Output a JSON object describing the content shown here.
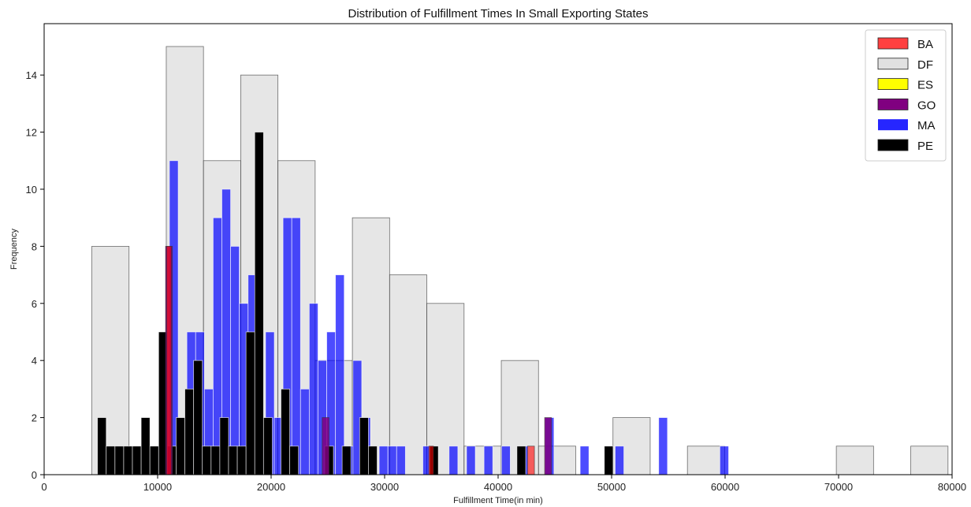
{
  "chart_data": {
    "type": "histogram",
    "title": "Distribution of Fulfillment Times In Small Exporting States",
    "xlabel": "Fulfillment Time(in min)",
    "ylabel": "Frequency",
    "xlim": [
      0,
      80000
    ],
    "ylim": [
      0,
      15.8
    ],
    "xticks": [
      0,
      10000,
      20000,
      30000,
      40000,
      50000,
      60000,
      70000,
      80000
    ],
    "yticks": [
      0,
      2,
      4,
      6,
      8,
      10,
      12,
      14
    ],
    "legend_position": "top-right",
    "grid": false,
    "series": [
      {
        "name": "DF",
        "color": "#d9d9d9",
        "alpha": 0.65,
        "edge": "#333333",
        "bins": [
          {
            "x0": 4200,
            "x1": 7480,
            "y": 8
          },
          {
            "x0": 10760,
            "x1": 14040,
            "y": 15
          },
          {
            "x0": 14040,
            "x1": 17320,
            "y": 11
          },
          {
            "x0": 17320,
            "x1": 20600,
            "y": 14
          },
          {
            "x0": 20600,
            "x1": 23880,
            "y": 11
          },
          {
            "x0": 23880,
            "x1": 27160,
            "y": 4
          },
          {
            "x0": 27160,
            "x1": 30440,
            "y": 9
          },
          {
            "x0": 30440,
            "x1": 33720,
            "y": 7
          },
          {
            "x0": 33720,
            "x1": 37000,
            "y": 6
          },
          {
            "x0": 37000,
            "x1": 40280,
            "y": 1
          },
          {
            "x0": 40280,
            "x1": 43560,
            "y": 4
          },
          {
            "x0": 43560,
            "x1": 46840,
            "y": 1
          },
          {
            "x0": 50120,
            "x1": 53400,
            "y": 2
          },
          {
            "x0": 56680,
            "x1": 59960,
            "y": 1
          },
          {
            "x0": 69800,
            "x1": 73080,
            "y": 1
          },
          {
            "x0": 76360,
            "x1": 79640,
            "y": 1
          }
        ]
      },
      {
        "name": "MA",
        "color": "#0000ff",
        "alpha": 0.7,
        "edge": "#ffffff",
        "bins": [
          {
            "x0": 9500,
            "x1": 10270,
            "y": 1
          },
          {
            "x0": 11040,
            "x1": 11810,
            "y": 11
          },
          {
            "x0": 11810,
            "x1": 12580,
            "y": 2
          },
          {
            "x0": 12580,
            "x1": 13350,
            "y": 5
          },
          {
            "x0": 13350,
            "x1": 14120,
            "y": 5
          },
          {
            "x0": 14120,
            "x1": 14890,
            "y": 3
          },
          {
            "x0": 14890,
            "x1": 15660,
            "y": 9
          },
          {
            "x0": 15660,
            "x1": 16430,
            "y": 10
          },
          {
            "x0": 16430,
            "x1": 17200,
            "y": 8
          },
          {
            "x0": 17200,
            "x1": 17970,
            "y": 6
          },
          {
            "x0": 17970,
            "x1": 18740,
            "y": 7
          },
          {
            "x0": 18740,
            "x1": 19510,
            "y": 1
          },
          {
            "x0": 19510,
            "x1": 20280,
            "y": 5
          },
          {
            "x0": 20280,
            "x1": 21050,
            "y": 2
          },
          {
            "x0": 21050,
            "x1": 21820,
            "y": 9
          },
          {
            "x0": 21820,
            "x1": 22590,
            "y": 9
          },
          {
            "x0": 22590,
            "x1": 23360,
            "y": 3
          },
          {
            "x0": 23360,
            "x1": 24130,
            "y": 6
          },
          {
            "x0": 24130,
            "x1": 24900,
            "y": 4
          },
          {
            "x0": 24900,
            "x1": 25670,
            "y": 5
          },
          {
            "x0": 25670,
            "x1": 26440,
            "y": 7
          },
          {
            "x0": 26440,
            "x1": 27210,
            "y": 1
          },
          {
            "x0": 27210,
            "x1": 27980,
            "y": 4
          },
          {
            "x0": 27980,
            "x1": 28750,
            "y": 2
          },
          {
            "x0": 29520,
            "x1": 30290,
            "y": 1
          },
          {
            "x0": 30290,
            "x1": 31060,
            "y": 1
          },
          {
            "x0": 31060,
            "x1": 31830,
            "y": 1
          },
          {
            "x0": 33370,
            "x1": 34140,
            "y": 1
          },
          {
            "x0": 35680,
            "x1": 36450,
            "y": 1
          },
          {
            "x0": 37220,
            "x1": 37990,
            "y": 1
          },
          {
            "x0": 38760,
            "x1": 39530,
            "y": 1
          },
          {
            "x0": 40300,
            "x1": 41070,
            "y": 1
          },
          {
            "x0": 41840,
            "x1": 42610,
            "y": 1
          },
          {
            "x0": 44150,
            "x1": 44920,
            "y": 2
          },
          {
            "x0": 47230,
            "x1": 48000,
            "y": 1
          },
          {
            "x0": 50310,
            "x1": 51080,
            "y": 1
          },
          {
            "x0": 54150,
            "x1": 54920,
            "y": 2
          },
          {
            "x0": 59540,
            "x1": 60310,
            "y": 1
          }
        ]
      },
      {
        "name": "PE",
        "color": "#000000",
        "alpha": 1.0,
        "edge": "#ffffff",
        "bins": [
          {
            "x0": 4700,
            "x1": 5470,
            "y": 2
          },
          {
            "x0": 5470,
            "x1": 6240,
            "y": 1
          },
          {
            "x0": 6240,
            "x1": 7010,
            "y": 1
          },
          {
            "x0": 7010,
            "x1": 7780,
            "y": 1
          },
          {
            "x0": 7780,
            "x1": 8550,
            "y": 1
          },
          {
            "x0": 8550,
            "x1": 9320,
            "y": 2
          },
          {
            "x0": 9320,
            "x1": 10090,
            "y": 1
          },
          {
            "x0": 10090,
            "x1": 10860,
            "y": 5
          },
          {
            "x0": 10860,
            "x1": 11630,
            "y": 1
          },
          {
            "x0": 11630,
            "x1": 12400,
            "y": 2
          },
          {
            "x0": 12400,
            "x1": 13170,
            "y": 3
          },
          {
            "x0": 13170,
            "x1": 13940,
            "y": 4
          },
          {
            "x0": 13940,
            "x1": 14710,
            "y": 1
          },
          {
            "x0": 14710,
            "x1": 15480,
            "y": 1
          },
          {
            "x0": 15480,
            "x1": 16250,
            "y": 2
          },
          {
            "x0": 16250,
            "x1": 17020,
            "y": 1
          },
          {
            "x0": 17020,
            "x1": 17790,
            "y": 1
          },
          {
            "x0": 17790,
            "x1": 18560,
            "y": 5
          },
          {
            "x0": 18560,
            "x1": 19330,
            "y": 12
          },
          {
            "x0": 19330,
            "x1": 20100,
            "y": 2
          },
          {
            "x0": 20870,
            "x1": 21640,
            "y": 3
          },
          {
            "x0": 21640,
            "x1": 22410,
            "y": 1
          },
          {
            "x0": 24720,
            "x1": 25490,
            "y": 1
          },
          {
            "x0": 26260,
            "x1": 27030,
            "y": 1
          },
          {
            "x0": 27800,
            "x1": 28570,
            "y": 2
          },
          {
            "x0": 28570,
            "x1": 29340,
            "y": 1
          },
          {
            "x0": 33960,
            "x1": 34730,
            "y": 1
          },
          {
            "x0": 41660,
            "x1": 42430,
            "y": 1
          },
          {
            "x0": 49360,
            "x1": 50130,
            "y": 1
          }
        ]
      },
      {
        "name": "GO",
        "color": "#800080",
        "alpha": 0.85,
        "edge": "#333333",
        "bins": [
          {
            "x0": 10700,
            "x1": 11300,
            "y": 8
          },
          {
            "x0": 24500,
            "x1": 25100,
            "y": 2
          },
          {
            "x0": 44100,
            "x1": 44700,
            "y": 2
          }
        ]
      },
      {
        "name": "BA",
        "color": "#ff0000",
        "alpha": 0.6,
        "edge": "#333333",
        "bins": [
          {
            "x0": 10800,
            "x1": 11200,
            "y": 8
          },
          {
            "x0": 33900,
            "x1": 34300,
            "y": 1
          },
          {
            "x0": 42600,
            "x1": 43200,
            "y": 1
          }
        ]
      },
      {
        "name": "ES",
        "color": "#ffff00",
        "alpha": 1.0,
        "edge": "#333333",
        "bins": []
      }
    ],
    "legend_order": [
      "BA",
      "DF",
      "ES",
      "GO",
      "MA",
      "PE"
    ]
  }
}
